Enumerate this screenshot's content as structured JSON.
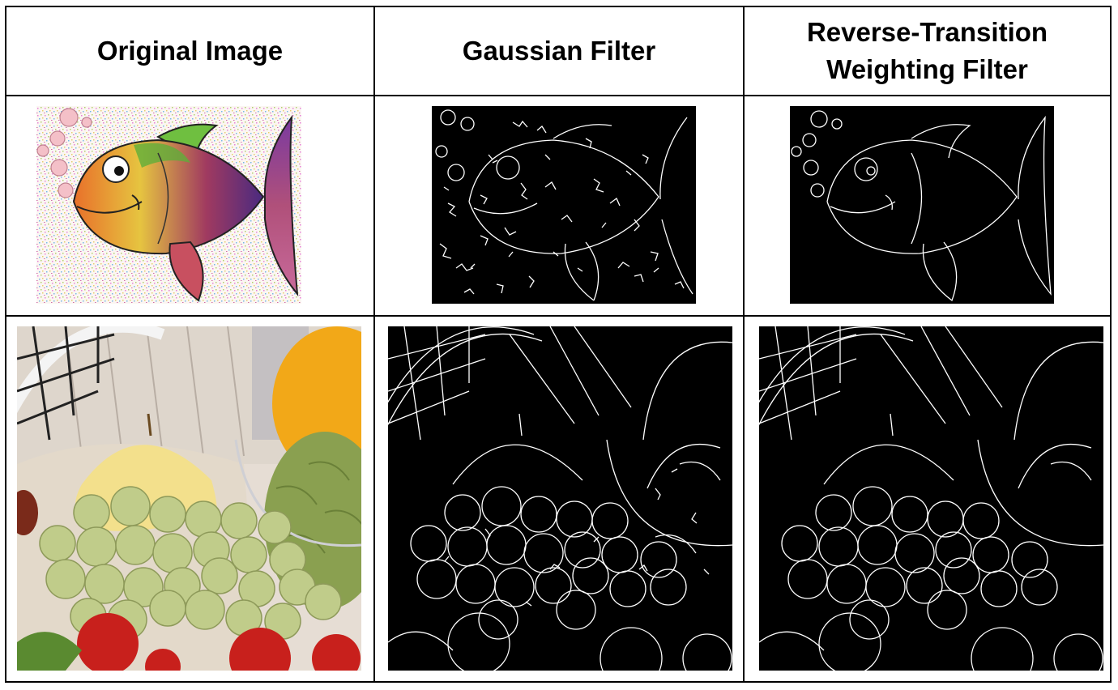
{
  "table": {
    "headers": {
      "col1": "Original Image",
      "col2": "Gaussian Filter",
      "col3": "Reverse-Transition Weighting Filter"
    },
    "rows": [
      {
        "subject": "fish",
        "cells": [
          "noisy-color-fish-image",
          "gaussian-edge-map-fish",
          "rtw-edge-map-fish"
        ]
      },
      {
        "subject": "fruits",
        "cells": [
          "color-fruits-image",
          "gaussian-edge-map-fruits",
          "rtw-edge-map-fruits"
        ]
      }
    ]
  },
  "colors": {
    "grid": "#000000",
    "edge_background": "#000000",
    "edge_lines": "#ffffff"
  }
}
